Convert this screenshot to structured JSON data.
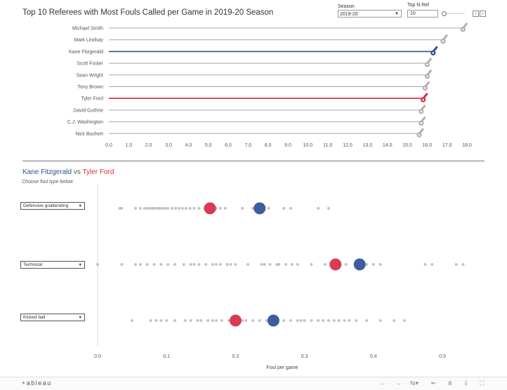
{
  "title": "Top 10 Referees with Most Fouls Called per Game in 2019-20 Season",
  "controls": {
    "season_label": "Season",
    "season_value": "2019-20",
    "topn_label": "Top N Ref",
    "topn_value": "10",
    "prev_icon": "chevron-left-icon",
    "next_icon": "chevron-right-icon"
  },
  "subtitle": {
    "player1": "Kane Fitzgerald",
    "vs": "vs",
    "player2": "Tyler Ford"
  },
  "instruction": "Choose foul type below",
  "colors": {
    "kane": "#2d4f94",
    "tyler": "#d62a45",
    "other": "#b8adab",
    "dot": "#bdbdbd"
  },
  "chart_data": [
    {
      "type": "bar",
      "title": "Top 10 Referees with Most Fouls Called per Game in 2019-20 Season",
      "orientation": "horizontal",
      "categories": [
        "Michael Smith",
        "Mark Lindsay",
        "Kane Fitzgerald",
        "Scott Foster",
        "Sean Wright",
        "Tony Brown",
        "Tyler Ford",
        "David Guthrie",
        "C.J. Washington",
        "Nick Buchert"
      ],
      "values": [
        17.8,
        16.8,
        16.3,
        16.0,
        16.0,
        15.9,
        15.8,
        15.7,
        15.7,
        15.6
      ],
      "highlight": {
        "Kane Fitzgerald": "#2d4f94",
        "Tyler Ford": "#d62a45"
      },
      "xlim": [
        0,
        18
      ],
      "xticks": [
        "0.0",
        "1.0",
        "2.0",
        "3.0",
        "4.0",
        "5.0",
        "6.0",
        "7.0",
        "8.0",
        "9.0",
        "10.0",
        "11.0",
        "12.0",
        "13.0",
        "14.0",
        "15.0",
        "16.0",
        "17.0",
        "18.0"
      ],
      "marker": "whistle-icon",
      "grid": false
    },
    {
      "type": "scatter",
      "xlabel": "Foul per game",
      "xlim": [
        0,
        0.55
      ],
      "xticks": [
        "0.0",
        "0.1",
        "0.2",
        "0.3",
        "0.4",
        "0.5"
      ],
      "rows": [
        {
          "foul_type": "Defensive goaltending",
          "kane": 0.235,
          "tyler": 0.163,
          "others": [
            0.032,
            0.035,
            0.055,
            0.062,
            0.068,
            0.072,
            0.076,
            0.08,
            0.083,
            0.087,
            0.09,
            0.094,
            0.098,
            0.102,
            0.108,
            0.113,
            0.118,
            0.123,
            0.128,
            0.134,
            0.14,
            0.147,
            0.155,
            0.172,
            0.178,
            0.185,
            0.21,
            0.225,
            0.248,
            0.27,
            0.28,
            0.32,
            0.335
          ]
        },
        {
          "foul_type": "Technical",
          "kane": 0.38,
          "tyler": 0.345,
          "others": [
            0.0,
            0.035,
            0.055,
            0.062,
            0.072,
            0.082,
            0.092,
            0.102,
            0.112,
            0.125,
            0.135,
            0.14,
            0.147,
            0.157,
            0.167,
            0.172,
            0.178,
            0.188,
            0.193,
            0.2,
            0.218,
            0.238,
            0.242,
            0.25,
            0.26,
            0.263,
            0.273,
            0.282,
            0.29,
            0.31,
            0.33,
            0.35,
            0.36,
            0.39,
            0.4,
            0.41,
            0.475,
            0.485,
            0.52,
            0.53
          ]
        },
        {
          "foul_type": "Kicked ball",
          "kane": 0.255,
          "tyler": 0.2,
          "others": [
            0.05,
            0.077,
            0.085,
            0.092,
            0.1,
            0.112,
            0.127,
            0.135,
            0.145,
            0.15,
            0.16,
            0.167,
            0.172,
            0.18,
            0.19,
            0.21,
            0.215,
            0.225,
            0.235,
            0.245,
            0.27,
            0.28,
            0.29,
            0.295,
            0.3,
            0.31,
            0.32,
            0.327,
            0.335,
            0.343,
            0.35,
            0.358,
            0.365,
            0.375,
            0.39,
            0.41,
            0.43,
            0.445
          ]
        }
      ]
    }
  ],
  "footer": {
    "logo": "+ableau",
    "icons": [
      "undo-icon",
      "redo-icon",
      "revert-icon",
      "reset-icon",
      "share-icon",
      "download-icon",
      "fullscreen-icon"
    ]
  }
}
